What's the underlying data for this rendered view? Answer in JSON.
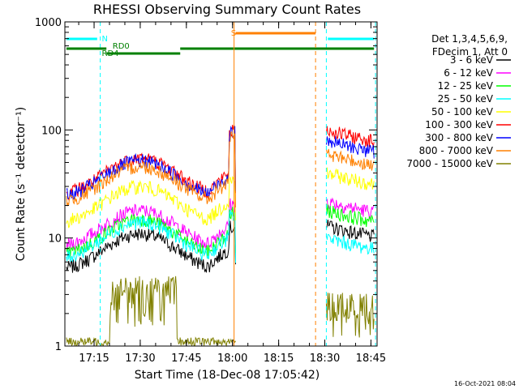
{
  "chart_data": {
    "type": "line",
    "title": "RHESSI Observing Summary Count Rates",
    "xlabel": "Start Time (18-Dec-08 17:05:42)",
    "ylabel": "Count Rate (s⁻¹ detector⁻¹)",
    "yscale": "log",
    "ylim": [
      1,
      1000
    ],
    "xlim_minutes": [
      17.1,
      18.9
    ],
    "x_ticks": [
      {
        "label": "17:15",
        "min": 1035
      },
      {
        "label": "17:30",
        "min": 1050
      },
      {
        "label": "17:45",
        "min": 1065
      },
      {
        "label": "18:00",
        "min": 1080
      },
      {
        "label": "18:15",
        "min": 1095
      },
      {
        "label": "18:30",
        "min": 1110
      },
      {
        "label": "18:45",
        "min": 1125
      }
    ],
    "y_ticks": [
      {
        "label": "1",
        "value": 1
      },
      {
        "label": "10",
        "value": 10
      },
      {
        "label": "100",
        "value": 100
      },
      {
        "label": "1000",
        "value": 1000
      }
    ],
    "legend": {
      "placement": "right",
      "header": [
        "Det 1,3,4,5,6,9,",
        "FDecim 1, Att 0"
      ]
    },
    "series": [
      {
        "name": "3 - 6 keV",
        "color": "#000000",
        "base": 11,
        "post": 13
      },
      {
        "name": "6 - 12 keV",
        "color": "#ff00ff",
        "base": 18,
        "post": 22
      },
      {
        "name": "12 - 25 keV",
        "color": "#00ff00",
        "base": 15,
        "post": 18
      },
      {
        "name": "25 - 50 keV",
        "color": "#00ffff",
        "base": 14,
        "post": 10
      },
      {
        "name": "50 - 100 keV",
        "color": "#ffff00",
        "base": 30,
        "post": 40
      },
      {
        "name": "100 - 300 keV",
        "color": "#ff0000",
        "base": 55,
        "post": 100
      },
      {
        "name": "300 - 800 keV",
        "color": "#0000ff",
        "base": 52,
        "post": 80
      },
      {
        "name": "800 - 7000 keV",
        "color": "#ff8000",
        "base": 46,
        "post": 60
      },
      {
        "name": "7000 - 15000 keV",
        "color": "#808000",
        "base": 2.5,
        "post": 2
      }
    ],
    "annotations": [
      {
        "text": "N",
        "color": "#00ffff"
      },
      {
        "text": "RD0",
        "color": "#008000"
      },
      {
        "text": "RD4",
        "color": "#008000"
      },
      {
        "text": "S",
        "color": "#ff8000"
      }
    ],
    "footer_timestamp": "16-Oct-2021 08:04"
  }
}
